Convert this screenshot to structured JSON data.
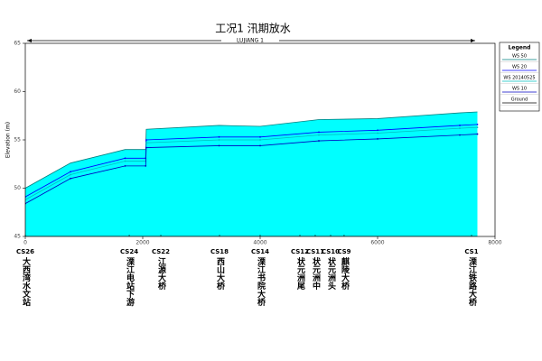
{
  "chart_data": {
    "type": "line",
    "title": "工况1 汛期放水",
    "reach": "LUJIANG 1",
    "y_label": "Elevation (m)",
    "xlim": [
      0,
      8000
    ],
    "xticks": [
      0,
      2000,
      4000,
      6000,
      8000
    ],
    "ylim": [
      45,
      65
    ],
    "yticks": [
      45,
      50,
      55,
      60,
      65
    ],
    "fill_color": "#00ffff",
    "legend_title": "Legend",
    "legend": "right",
    "x": [
      0,
      770,
      1700,
      2050,
      2060,
      3300,
      4000,
      5000,
      6000,
      7400,
      7700
    ],
    "series": [
      {
        "name": "WS 50",
        "color": "#008080",
        "values": [
          50.0,
          52.6,
          54.0,
          54.0,
          56.1,
          56.5,
          56.4,
          57.1,
          57.2,
          57.8,
          57.9
        ]
      },
      {
        "name": "WS 20",
        "color": "#0000ff",
        "values": [
          49.1,
          51.7,
          53.1,
          53.1,
          55.0,
          55.3,
          55.3,
          55.8,
          56.0,
          56.5,
          56.6
        ]
      },
      {
        "name": "WS 20140525",
        "color": "#00bfbf",
        "values": [
          48.8,
          51.4,
          52.8,
          52.8,
          54.7,
          55.0,
          55.0,
          55.5,
          55.7,
          56.2,
          56.3
        ]
      },
      {
        "name": "WS 10",
        "color": "#0000c0",
        "values": [
          48.4,
          51.0,
          52.3,
          52.3,
          54.2,
          54.4,
          54.4,
          54.9,
          55.1,
          55.5,
          55.6
        ]
      },
      {
        "name": "Ground",
        "color": "#000000",
        "values": [
          45,
          45,
          45,
          45,
          45,
          45,
          45,
          45,
          45,
          45,
          45
        ]
      }
    ],
    "sections": [
      {
        "name": "CS26",
        "label": "大西湾水文站",
        "x": 0
      },
      {
        "name": "CS24",
        "label": "溧江电站下游",
        "x": 1770
      },
      {
        "name": "CS22",
        "label": "江源大桥",
        "x": 2308
      },
      {
        "name": "CS18",
        "label": "西山大桥",
        "x": 3308
      },
      {
        "name": "CS14",
        "label": "溧江书院大桥",
        "x": 4000
      },
      {
        "name": "CS12",
        "label": "状元洲尾",
        "x": 4677
      },
      {
        "name": "CS11",
        "label": "状元洲中",
        "x": 4938
      },
      {
        "name": "CS10",
        "label": "状元洲头",
        "x": 5200
      },
      {
        "name": "CS9",
        "label": "麒陵大桥",
        "x": 5430
      },
      {
        "name": "CS1",
        "label": "溧江铁路大桥",
        "x": 7600
      }
    ]
  }
}
